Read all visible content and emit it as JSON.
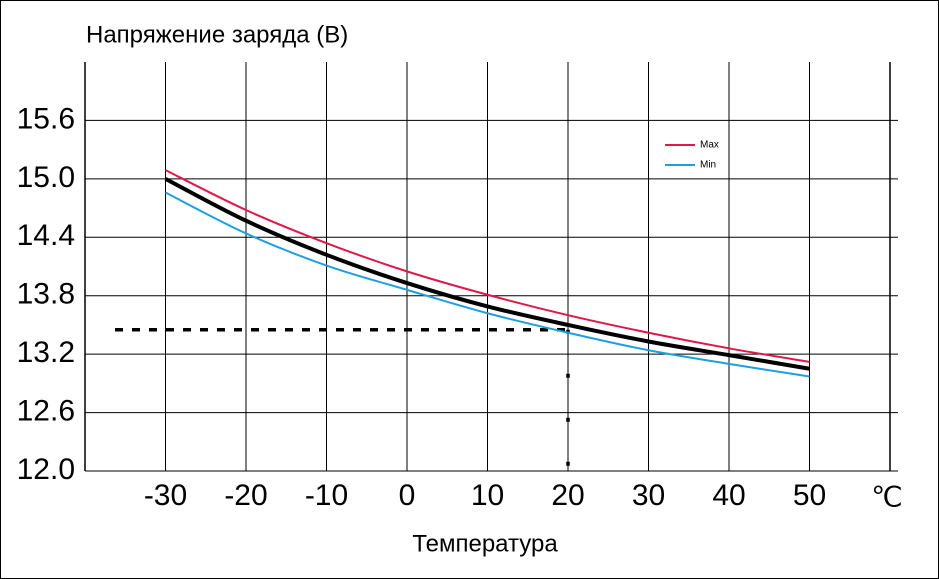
{
  "chart_data": {
    "type": "line",
    "title": "Напряжение заряда (В)",
    "x_label": "Температура",
    "x_unit": "℃",
    "x": [
      -30,
      -20,
      -10,
      0,
      10,
      20,
      30,
      40,
      50
    ],
    "series": [
      {
        "color": "#000000",
        "values": [
          15.0,
          14.57,
          14.22,
          13.93,
          13.69,
          13.5,
          13.33,
          13.19,
          13.05
        ]
      },
      {
        "name": "Max",
        "color": "#e0184a",
        "values": [
          15.09,
          14.68,
          14.34,
          14.05,
          13.81,
          13.6,
          13.42,
          13.26,
          13.12
        ]
      },
      {
        "name": "Min",
        "color": "#1e9fe0",
        "values": [
          14.86,
          14.44,
          14.11,
          13.86,
          13.62,
          13.42,
          13.24,
          13.1,
          12.97
        ]
      }
    ],
    "xlim": [
      -40,
      60
    ],
    "xticks": [
      -30,
      -20,
      -10,
      0,
      10,
      20,
      30,
      40,
      50
    ],
    "ylim": [
      12.0,
      16.2
    ],
    "yticks": [
      {
        "value": 12.0,
        "label": "12.0"
      },
      12.6,
      13.2,
      13.8,
      14.4,
      {
        "value": 15.0,
        "label": "15.0"
      },
      15.6
    ],
    "grid": true,
    "legend": "upper right",
    "reference": {
      "x": 20,
      "y": 13.45
    }
  }
}
